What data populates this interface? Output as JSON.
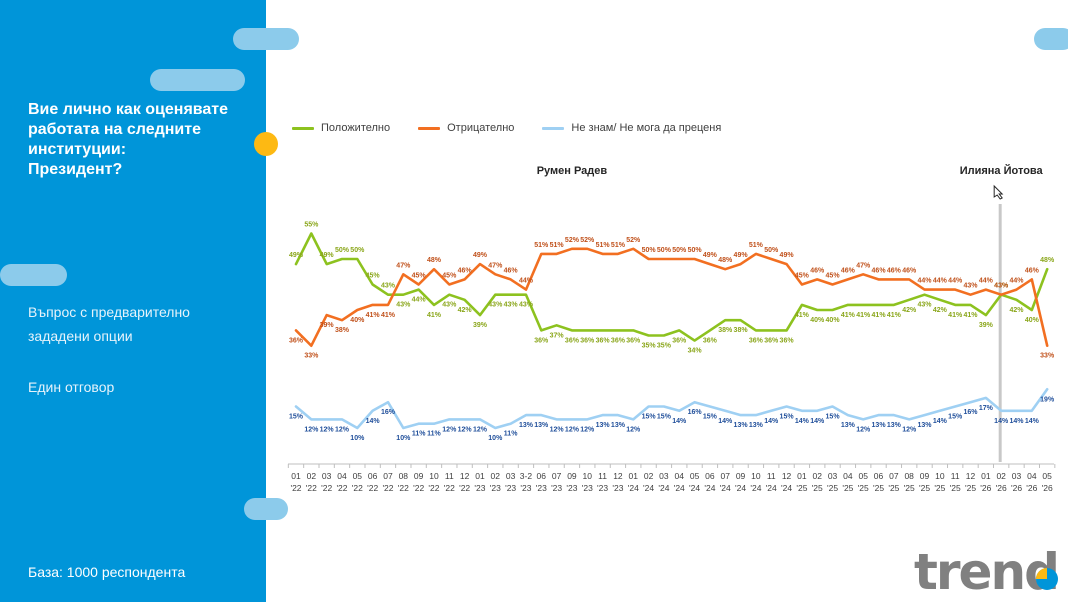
{
  "sidebar": {
    "question": "Вие лично как оценявате работата на следните институции:\nПрезидент?",
    "note1": "Въпрос с предварително зададени опции",
    "note2": "Един отговор",
    "base": "База:  1000 респондента"
  },
  "logo": {
    "text": "trend"
  },
  "colors": {
    "sidebar": "#0095d9",
    "accent": "#fdb913",
    "positive": "#8dc21f",
    "negative": "#f26f21",
    "dontknow": "#9fd0f3"
  },
  "chart_data": {
    "type": "line",
    "title": "",
    "xlabel": "",
    "ylabel": "",
    "grid": false,
    "legend_position": "top-left",
    "x": [
      [
        "01",
        "'22"
      ],
      [
        "02",
        "'22"
      ],
      [
        "03",
        "'22"
      ],
      [
        "04",
        "'22"
      ],
      [
        "05",
        "'22"
      ],
      [
        "06",
        "'22"
      ],
      [
        "07",
        "'22"
      ],
      [
        "08",
        "'22"
      ],
      [
        "09",
        "'22"
      ],
      [
        "10",
        "'22"
      ],
      [
        "11",
        "'22"
      ],
      [
        "12",
        "'22"
      ],
      [
        "01",
        "'23"
      ],
      [
        "02",
        "'23"
      ],
      [
        "03",
        "'23"
      ],
      [
        "3-2",
        "'23"
      ],
      [
        "06",
        "'23"
      ],
      [
        "07",
        "'23"
      ],
      [
        "09",
        "'23"
      ],
      [
        "10",
        "'23"
      ],
      [
        "11",
        "'23"
      ],
      [
        "12",
        "'23"
      ],
      [
        "01",
        "'24"
      ],
      [
        "02",
        "'24"
      ],
      [
        "03",
        "'24"
      ],
      [
        "04",
        "'24"
      ],
      [
        "05",
        "'24"
      ],
      [
        "06",
        "'24"
      ],
      [
        "07",
        "'24"
      ],
      [
        "09",
        "'24"
      ],
      [
        "10",
        "'24"
      ],
      [
        "11",
        "'24"
      ],
      [
        "12",
        "'24"
      ],
      [
        "01",
        "'25"
      ],
      [
        "02",
        "'25"
      ],
      [
        "03",
        "'25"
      ],
      [
        "04",
        "'25"
      ],
      [
        "05",
        "'25"
      ],
      [
        "06",
        "'25"
      ],
      [
        "07",
        "'25"
      ],
      [
        "08",
        "'25"
      ],
      [
        "09",
        "'25"
      ],
      [
        "10",
        "'25"
      ],
      [
        "11",
        "'25"
      ],
      [
        "12",
        "'25"
      ],
      [
        "01",
        "'26"
      ],
      [
        "02",
        "'26"
      ],
      [
        "03",
        "'26"
      ],
      [
        "04",
        "'26"
      ],
      [
        "05",
        "'26"
      ]
    ],
    "series": [
      {
        "name": "Положително",
        "values": [
          49,
          55,
          49,
          50,
          50,
          45,
          43,
          43,
          44,
          41,
          43,
          42,
          39,
          43,
          43,
          43,
          36,
          37,
          36,
          36,
          36,
          36,
          36,
          35,
          35,
          36,
          34,
          36,
          38,
          38,
          36,
          36,
          36,
          41,
          40,
          40,
          41,
          41,
          41,
          41,
          42,
          43,
          42,
          41,
          41,
          39,
          43,
          42,
          40,
          48
        ]
      },
      {
        "name": "Отрицателно",
        "values": [
          36,
          33,
          39,
          38,
          40,
          41,
          41,
          47,
          45,
          48,
          45,
          46,
          49,
          47,
          46,
          44,
          51,
          51,
          52,
          52,
          51,
          51,
          52,
          50,
          50,
          50,
          50,
          49,
          48,
          49,
          51,
          50,
          49,
          45,
          46,
          45,
          46,
          47,
          46,
          46,
          46,
          44,
          44,
          44,
          43,
          44,
          43,
          44,
          46,
          33
        ]
      },
      {
        "name": "Не знам/ Не мога да преценя",
        "values": [
          15,
          12,
          12,
          12,
          10,
          14,
          16,
          10,
          11,
          11,
          12,
          12,
          12,
          10,
          11,
          13,
          13,
          12,
          12,
          12,
          13,
          13,
          12,
          15,
          15,
          14,
          16,
          15,
          14,
          13,
          13,
          14,
          15,
          14,
          14,
          15,
          13,
          12,
          13,
          13,
          12,
          13,
          14,
          15,
          16,
          17,
          14,
          14,
          14,
          19
        ]
      }
    ],
    "annotations": [
      {
        "text": "Румен Радев",
        "at_index": 18
      },
      {
        "text": "Илияна Йотова",
        "at_index": 46
      }
    ]
  }
}
